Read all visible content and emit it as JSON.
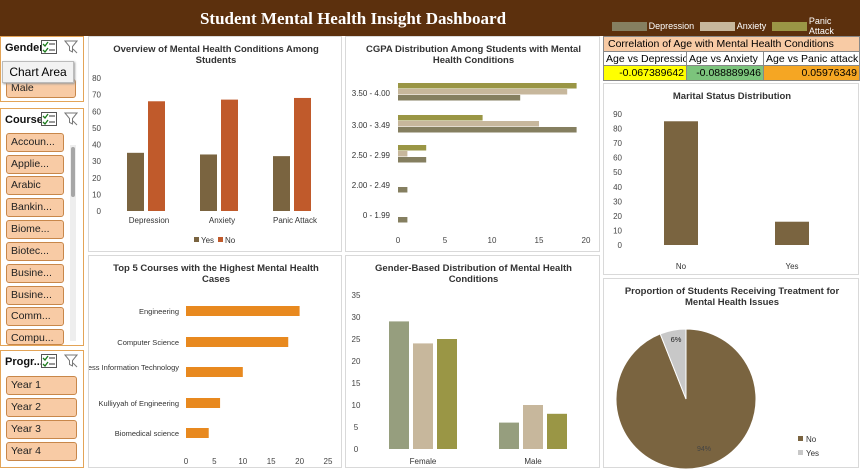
{
  "title": "Student Mental Health Insight Dashboard",
  "legend": [
    {
      "label": "Depression",
      "color": "#857f60"
    },
    {
      "label": "Anxiety",
      "color": "#c7b79c"
    },
    {
      "label": "Panic Attack",
      "color": "#9a9645"
    }
  ],
  "correlation": {
    "heading": "Correlation of Age with Mental Health Conditions",
    "headers": [
      "Age vs Depressio",
      "Age vs Anxiety",
      "Age vs Panic attack"
    ],
    "values": [
      "-0.067389642",
      "-0.088889946",
      "0.05976349"
    ],
    "colors": [
      "#ffff00",
      "#7cc47c",
      "#f5a623"
    ]
  },
  "tooltip": "Chart Area",
  "slicers": {
    "gender": {
      "title": "Gender",
      "items": [
        "Male"
      ]
    },
    "course": {
      "title": "Course",
      "items": [
        "Accoun...",
        "Applie...",
        "Arabic",
        "Bankin...",
        "Biome...",
        "Biotec...",
        "Busine...",
        "Busine...",
        "Comm...",
        "Compu..."
      ]
    },
    "program": {
      "title": "Progr...",
      "items": [
        "Year 1",
        "Year 2",
        "Year 3",
        "Year 4"
      ]
    }
  },
  "chart_data": [
    {
      "type": "bar",
      "title": "Overview of Mental Health Conditions Among Students",
      "categories": [
        "Depression",
        "Anxiety",
        "Panic Attack"
      ],
      "series": [
        {
          "name": "Yes",
          "values": [
            35,
            34,
            33
          ],
          "color": "#7a6440"
        },
        {
          "name": "No",
          "values": [
            66,
            67,
            68
          ],
          "color": "#c05a2b"
        }
      ],
      "ylim": [
        0,
        80
      ],
      "yticks": [
        0,
        10,
        20,
        30,
        40,
        50,
        60,
        70,
        80
      ],
      "legend_position": "bottom"
    },
    {
      "type": "bar",
      "orientation": "horizontal",
      "title": "CGPA Distribution Among Students with Mental Health Conditions",
      "categories": [
        "3.50 - 4.00",
        "3.00 - 3.49",
        "2.50 - 2.99",
        "2.00 - 2.49",
        "0 - 1.99"
      ],
      "series": [
        {
          "name": "Depression",
          "values": [
            13,
            19,
            3,
            1,
            1
          ]
        },
        {
          "name": "Anxiety",
          "values": [
            18,
            15,
            1,
            0,
            0
          ]
        },
        {
          "name": "Panic Attack",
          "values": [
            19,
            9,
            3,
            0,
            0
          ]
        }
      ],
      "xlim": [
        0,
        20
      ],
      "xticks": [
        0,
        5,
        10,
        15,
        20
      ]
    },
    {
      "type": "bar",
      "title": "Marital Status Distribution",
      "categories": [
        "No",
        "Yes"
      ],
      "values": [
        85,
        16
      ],
      "ylim": [
        0,
        90
      ],
      "yticks": [
        0,
        10,
        20,
        30,
        40,
        50,
        60,
        70,
        80,
        90
      ],
      "color": "#7a6440"
    },
    {
      "type": "bar",
      "orientation": "horizontal",
      "title": "Top 5 Courses with the Highest Mental Health Cases",
      "categories": [
        "Engineering",
        "Computer Science",
        "Business Information Technology",
        "Kulliyyah of Engineering",
        "Biomedical science"
      ],
      "values": [
        20,
        18,
        10,
        6,
        4
      ],
      "xlim": [
        0,
        25
      ],
      "xticks": [
        0,
        5,
        10,
        15,
        20,
        25
      ],
      "color": "#e8891f"
    },
    {
      "type": "bar",
      "title": "Gender-Based Distribution of Mental Health Conditions",
      "categories": [
        "Female",
        "Male"
      ],
      "series": [
        {
          "name": "Depression",
          "values": [
            29,
            6
          ]
        },
        {
          "name": "Anxiety",
          "values": [
            24,
            10
          ]
        },
        {
          "name": "Panic Attack",
          "values": [
            25,
            8
          ]
        }
      ],
      "ylim": [
        0,
        35
      ],
      "yticks": [
        0,
        5,
        10,
        15,
        20,
        25,
        30,
        35
      ]
    },
    {
      "type": "pie",
      "title": "Proportion of Students Receiving Treatment for Mental Health Issues",
      "categories": [
        "No",
        "Yes"
      ],
      "values": [
        94,
        6
      ],
      "labels": [
        "94%",
        "6%"
      ],
      "colors": [
        "#7a6440",
        "#c8c8c8"
      ],
      "legend_position": "bottom-right"
    }
  ]
}
